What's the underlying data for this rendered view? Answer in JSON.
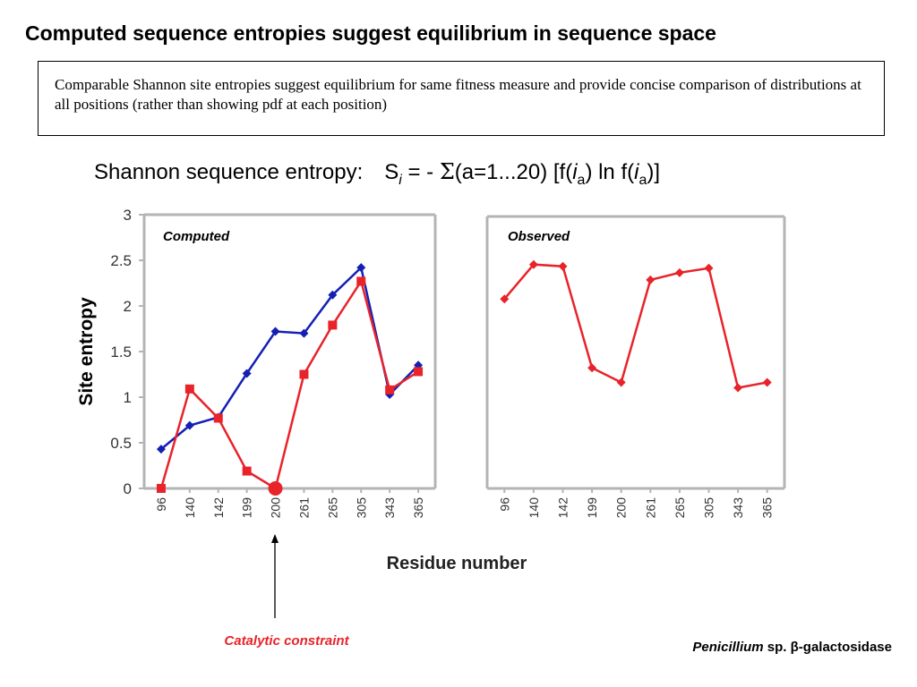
{
  "title": "Computed sequence entropies suggest equilibrium in sequence space",
  "description": "Comparable Shannon site entropies suggest equilibrium for same fitness measure and provide concise comparison of distributions at all positions (rather than showing pdf at each position)",
  "formula": {
    "label": "Shannon sequence entropy:",
    "expression": {
      "s": "S",
      "i": "i",
      "eq": " = - ",
      "sigma": "Σ",
      "range": "(a=1...20) [f(",
      "i2": "i",
      "a": "a",
      "mid": ") ln f(",
      "i3": "i",
      "a2": "a",
      "end": ")]"
    }
  },
  "annotation": {
    "label": "Catalytic constraint",
    "color": "#e8232a"
  },
  "species": {
    "genus": "Penicillium",
    "rest": " sp. β-galactosidase"
  },
  "colors": {
    "computed": "#e8232a",
    "observed": "#e8232a",
    "reference": "#1420b4",
    "frame": "#b4b4b4"
  },
  "chart_data": [
    {
      "type": "line",
      "title": "Computed",
      "ylabel": "Site entropy",
      "xlabel": "Residue number",
      "ylim": [
        0,
        3
      ],
      "yticks": [
        "0",
        "0.5",
        "1",
        "1.5",
        "2",
        "2.5",
        "3"
      ],
      "categories": [
        "96",
        "140",
        "142",
        "199",
        "200",
        "261",
        "265",
        "305",
        "343",
        "365"
      ],
      "series": [
        {
          "color": "#1420b4",
          "marker": "diamond",
          "values": [
            0.43,
            0.69,
            0.78,
            1.26,
            1.72,
            1.7,
            2.12,
            2.42,
            1.03,
            1.35
          ]
        },
        {
          "color": "#e8232a",
          "marker": "square",
          "values": [
            0.0,
            1.09,
            0.77,
            0.19,
            0.0,
            1.25,
            1.79,
            2.27,
            1.08,
            1.28
          ]
        }
      ]
    },
    {
      "type": "line",
      "title": "Observed",
      "xlabel": "Residue number",
      "ylim": [
        0,
        3
      ],
      "categories": [
        "96",
        "140",
        "142",
        "199",
        "200",
        "261",
        "265",
        "305",
        "343",
        "365"
      ],
      "series": [
        {
          "color": "#e8232a",
          "marker": "diamond",
          "values": [
            2.09,
            2.47,
            2.45,
            1.33,
            1.17,
            2.3,
            2.38,
            2.43,
            1.11,
            1.17
          ]
        }
      ]
    }
  ]
}
